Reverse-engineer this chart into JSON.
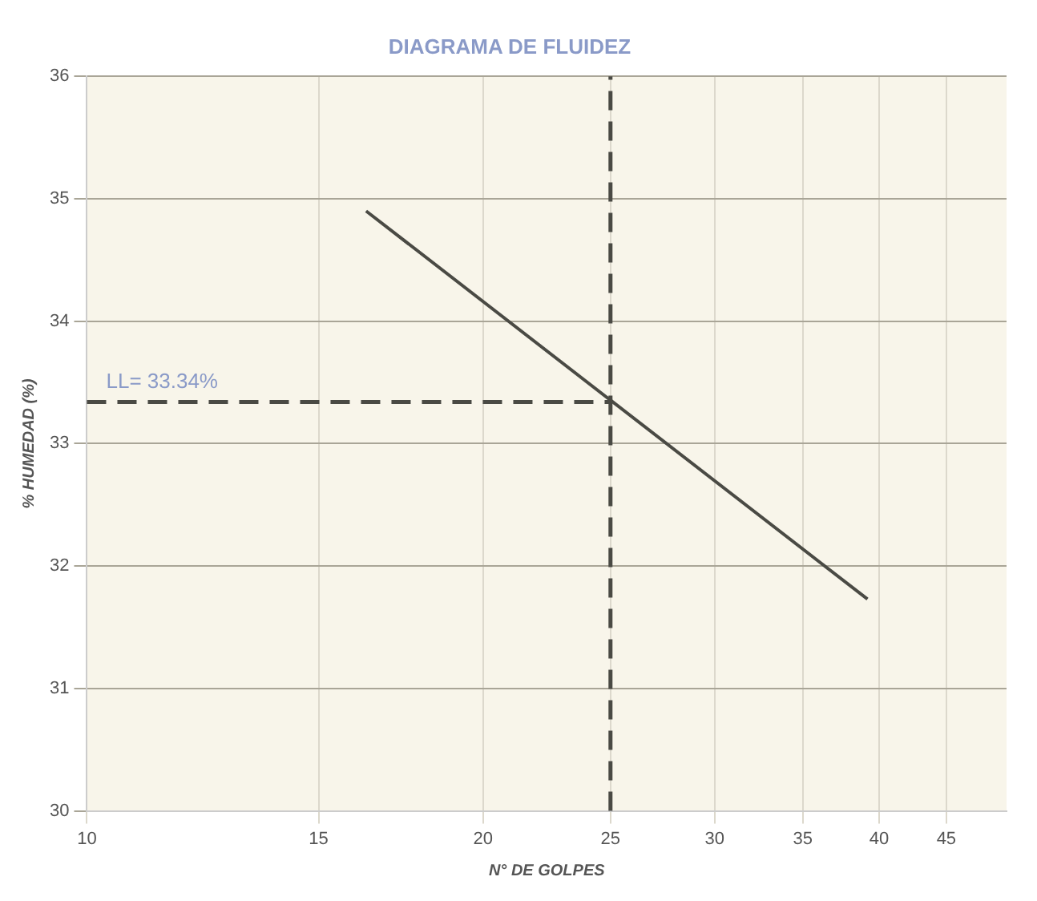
{
  "chart_data": {
    "type": "line",
    "title": "DIAGRAMA DE FLUIDEZ",
    "xlabel": "N° DE GOLPES",
    "ylabel": "% HUMEDAD (%)",
    "x": [
      16.3,
      39.2
    ],
    "series": [
      {
        "color": "#4a4a44",
        "values": [
          34.9,
          31.73
        ]
      }
    ],
    "xlim": [
      10,
      50
    ],
    "xticks": [
      10,
      15,
      20,
      25,
      30,
      35,
      40,
      45
    ],
    "ylim": [
      30,
      36
    ],
    "yticks": [
      30,
      31,
      32,
      33,
      34,
      35,
      36
    ],
    "log": "x",
    "grid": true,
    "legend": false,
    "marker": "none",
    "line_style": "solid",
    "ref_lines": [
      {
        "axis": "x",
        "value": 25,
        "color": "#4a4a44",
        "line_style": "dashed"
      },
      {
        "axis": "y",
        "value": 33.34,
        "label": "LL= 33.34%",
        "color": "#4a4a44",
        "line_style": "dashed"
      }
    ]
  }
}
